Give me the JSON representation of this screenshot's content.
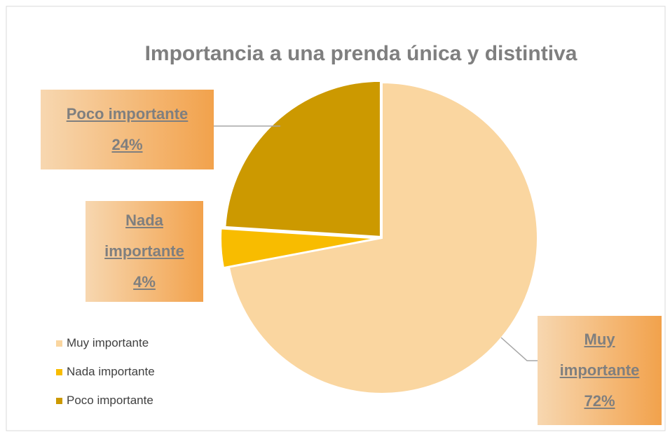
{
  "chart_data": {
    "type": "pie",
    "title": "Importancia a una prenda única y distintiva",
    "categories": [
      "Muy importante",
      "Nada importante",
      "Poco importante"
    ],
    "values": [
      72,
      4,
      24
    ],
    "value_labels": [
      "72%",
      "4%",
      "24%"
    ],
    "colors": [
      "#fad6a0",
      "#f8bc00",
      "#cc9900"
    ],
    "legend": "left"
  }
}
